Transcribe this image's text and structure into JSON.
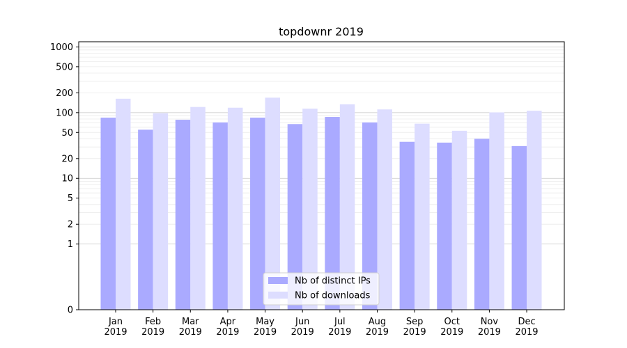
{
  "chart_data": {
    "type": "bar",
    "title": "topdownr 2019",
    "xlabel": "",
    "ylabel": "",
    "categories": [
      "Jan\n2019",
      "Feb\n2019",
      "Mar\n2019",
      "Apr\n2019",
      "May\n2019",
      "Jun\n2019",
      "Jul\n2019",
      "Aug\n2019",
      "Sep\n2019",
      "Oct\n2019",
      "Nov\n2019",
      "Dec\n2019"
    ],
    "series": [
      {
        "name": "Nb of distinct IPs",
        "color": "#aaaaff",
        "values": [
          84,
          55,
          78,
          71,
          84,
          67,
          86,
          71,
          36,
          35,
          40,
          31
        ]
      },
      {
        "name": "Nb of downloads",
        "color": "#ddddff",
        "values": [
          163,
          98,
          122,
          119,
          169,
          115,
          134,
          112,
          68,
          53,
          101,
          107
        ]
      }
    ],
    "yscale": "symlog",
    "ylim": [
      0,
      1200
    ],
    "yticks": [
      0,
      1,
      2,
      5,
      10,
      20,
      50,
      100,
      200,
      500,
      1000
    ],
    "ytick_labels": [
      "0",
      "1",
      "2",
      "5",
      "10",
      "20",
      "50",
      "100",
      "200",
      "500",
      "1000"
    ],
    "legend_position": "lower center",
    "grid": "horizontal major and minor"
  }
}
